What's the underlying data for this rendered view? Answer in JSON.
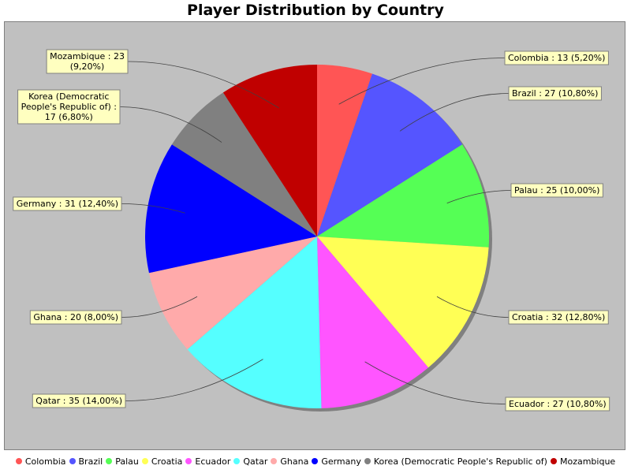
{
  "chart_data": {
    "type": "pie",
    "title": "Player Distribution by Country",
    "slices": [
      {
        "label": "Colombia",
        "value": 13,
        "percent": "5,20%",
        "color": "#ff5555"
      },
      {
        "label": "Brazil",
        "value": 27,
        "percent": "10,80%",
        "color": "#5555ff"
      },
      {
        "label": "Palau",
        "value": 25,
        "percent": "10,00%",
        "color": "#55ff55"
      },
      {
        "label": "Croatia",
        "value": 32,
        "percent": "12,80%",
        "color": "#ffff55"
      },
      {
        "label": "Ecuador",
        "value": 27,
        "percent": "10,80%",
        "color": "#ff55ff"
      },
      {
        "label": "Qatar",
        "value": 35,
        "percent": "14,00%",
        "color": "#55ffff"
      },
      {
        "label": "Ghana",
        "value": 20,
        "percent": "8,00%",
        "color": "#ffaaaa"
      },
      {
        "label": "Germany",
        "value": 31,
        "percent": "12,40%",
        "color": "#0000ff"
      },
      {
        "label": "Korea (Democratic People's Republic of)",
        "value": 17,
        "percent": "6,80%",
        "color": "#808080"
      },
      {
        "label": "Mozambique",
        "value": 23,
        "percent": "9,20%",
        "color": "#c00000"
      }
    ],
    "slice_labels": [
      [
        "Colombia : 13 (5,20%)"
      ],
      [
        "Brazil : 27 (10,80%)"
      ],
      [
        "Palau : 25 (10,00%)"
      ],
      [
        "Croatia : 32 (12,80%)"
      ],
      [
        "Ecuador : 27 (10,80%)"
      ],
      [
        "Qatar : 35 (14,00%)"
      ],
      [
        "Ghana : 20 (8,00%)"
      ],
      [
        "Germany : 31 (12,40%)"
      ],
      [
        "Korea (Democratic",
        "People's Republic of) :",
        "17 (6,80%)"
      ],
      [
        "Mozambique : 23",
        "(9,20%)"
      ]
    ],
    "legend_position": "bottom",
    "plot_background": "#c0c0c0",
    "label_box_color": "#ffffc0"
  }
}
